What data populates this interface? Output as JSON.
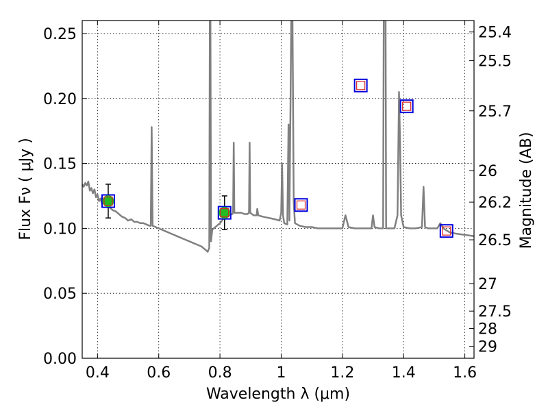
{
  "chart_data": {
    "type": "line",
    "xlabel": "Wavelength  λ (μm)",
    "ylabel": "Flux  Fν  ( μJy )",
    "ylabel_right": "Magnitude (AB)",
    "xlim": [
      0.35,
      1.63
    ],
    "ylim": [
      0.0,
      0.26
    ],
    "x_ticks": [
      0.4,
      0.6,
      0.8,
      1.0,
      1.2,
      1.4,
      1.6
    ],
    "x_tick_labels": [
      "0.4",
      "0.6",
      "0.8",
      "1",
      "1.2",
      "1.4",
      "1.6"
    ],
    "y_ticks": [
      0.0,
      0.05,
      0.1,
      0.15,
      0.2,
      0.25
    ],
    "y_tick_labels": [
      "0.00",
      "0.05",
      "0.10",
      "0.15",
      "0.20",
      "0.25"
    ],
    "right_ticks": [
      {
        "label": "25.4",
        "flux": 0.2512
      },
      {
        "label": "25.5",
        "flux": 0.2291
      },
      {
        "label": "25.7",
        "flux": 0.1905
      },
      {
        "label": "26",
        "flux": 0.1445
      },
      {
        "label": "26.2",
        "flux": 0.1202
      },
      {
        "label": "26.5",
        "flux": 0.0912
      },
      {
        "label": "27",
        "flux": 0.0575
      },
      {
        "label": "27.5",
        "flux": 0.0363
      },
      {
        "label": "28",
        "flux": 0.0229
      },
      {
        "label": "29",
        "flux": 0.0091
      }
    ],
    "grid": true,
    "spectrum": {
      "color": "#808080",
      "points": [
        [
          0.35,
          0.134
        ],
        [
          0.355,
          0.132
        ],
        [
          0.36,
          0.135
        ],
        [
          0.365,
          0.133
        ],
        [
          0.37,
          0.136
        ],
        [
          0.375,
          0.129
        ],
        [
          0.38,
          0.131
        ],
        [
          0.385,
          0.127
        ],
        [
          0.39,
          0.13
        ],
        [
          0.395,
          0.124
        ],
        [
          0.4,
          0.126
        ],
        [
          0.405,
          0.121
        ],
        [
          0.41,
          0.123
        ],
        [
          0.415,
          0.119
        ],
        [
          0.42,
          0.121
        ],
        [
          0.43,
          0.118
        ],
        [
          0.44,
          0.116
        ],
        [
          0.45,
          0.114
        ],
        [
          0.46,
          0.113
        ],
        [
          0.47,
          0.111
        ],
        [
          0.48,
          0.109
        ],
        [
          0.49,
          0.108
        ],
        [
          0.5,
          0.106
        ],
        [
          0.51,
          0.107
        ],
        [
          0.52,
          0.105
        ],
        [
          0.53,
          0.105
        ],
        [
          0.54,
          0.104
        ],
        [
          0.55,
          0.104
        ],
        [
          0.56,
          0.103
        ],
        [
          0.57,
          0.102
        ],
        [
          0.574,
          0.102
        ],
        [
          0.577,
          0.178
        ],
        [
          0.58,
          0.102
        ],
        [
          0.59,
          0.101
        ],
        [
          0.6,
          0.1
        ],
        [
          0.62,
          0.098
        ],
        [
          0.64,
          0.096
        ],
        [
          0.66,
          0.094
        ],
        [
          0.68,
          0.092
        ],
        [
          0.7,
          0.09
        ],
        [
          0.72,
          0.088
        ],
        [
          0.74,
          0.086
        ],
        [
          0.755,
          0.083
        ],
        [
          0.76,
          0.082
        ],
        [
          0.765,
          0.085
        ],
        [
          0.767,
          0.26
        ],
        [
          0.769,
          0.26
        ],
        [
          0.771,
          0.09
        ],
        [
          0.775,
          0.099
        ],
        [
          0.79,
          0.102
        ],
        [
          0.8,
          0.104
        ],
        [
          0.81,
          0.107
        ],
        [
          0.82,
          0.108
        ],
        [
          0.83,
          0.11
        ],
        [
          0.84,
          0.111
        ],
        [
          0.843,
          0.112
        ],
        [
          0.845,
          0.166
        ],
        [
          0.847,
          0.112
        ],
        [
          0.86,
          0.112
        ],
        [
          0.87,
          0.112
        ],
        [
          0.88,
          0.111
        ],
        [
          0.89,
          0.111
        ],
        [
          0.895,
          0.112
        ],
        [
          0.897,
          0.166
        ],
        [
          0.899,
          0.112
        ],
        [
          0.91,
          0.11
        ],
        [
          0.92,
          0.11
        ],
        [
          0.922,
          0.115
        ],
        [
          0.925,
          0.11
        ],
        [
          0.94,
          0.109
        ],
        [
          0.96,
          0.108
        ],
        [
          0.98,
          0.107
        ],
        [
          0.995,
          0.106
        ],
        [
          1.0,
          0.112
        ],
        [
          1.003,
          0.15
        ],
        [
          1.006,
          0.11
        ],
        [
          1.01,
          0.104
        ],
        [
          1.02,
          0.103
        ],
        [
          1.024,
          0.18
        ],
        [
          1.027,
          0.106
        ],
        [
          1.033,
          0.26
        ],
        [
          1.037,
          0.26
        ],
        [
          1.041,
          0.12
        ],
        [
          1.045,
          0.104
        ],
        [
          1.06,
          0.102
        ],
        [
          1.08,
          0.101
        ],
        [
          1.1,
          0.101
        ],
        [
          1.12,
          0.1
        ],
        [
          1.14,
          0.1
        ],
        [
          1.16,
          0.1
        ],
        [
          1.18,
          0.1
        ],
        [
          1.2,
          0.1
        ],
        [
          1.21,
          0.11
        ],
        [
          1.22,
          0.101
        ],
        [
          1.24,
          0.1
        ],
        [
          1.26,
          0.1
        ],
        [
          1.28,
          0.1
        ],
        [
          1.295,
          0.1
        ],
        [
          1.3,
          0.11
        ],
        [
          1.305,
          0.101
        ],
        [
          1.32,
          0.1
        ],
        [
          1.333,
          0.1
        ],
        [
          1.335,
          0.26
        ],
        [
          1.341,
          0.26
        ],
        [
          1.343,
          0.1
        ],
        [
          1.35,
          0.1
        ],
        [
          1.37,
          0.1
        ],
        [
          1.38,
          0.11
        ],
        [
          1.385,
          0.205
        ],
        [
          1.388,
          0.17
        ],
        [
          1.392,
          0.11
        ],
        [
          1.4,
          0.101
        ],
        [
          1.42,
          0.1
        ],
        [
          1.44,
          0.1
        ],
        [
          1.46,
          0.101
        ],
        [
          1.465,
          0.132
        ],
        [
          1.47,
          0.101
        ],
        [
          1.48,
          0.1
        ],
        [
          1.5,
          0.1
        ],
        [
          1.51,
          0.1
        ],
        [
          1.52,
          0.104
        ],
        [
          1.53,
          0.1
        ],
        [
          1.55,
          0.097
        ],
        [
          1.57,
          0.096
        ],
        [
          1.6,
          0.095
        ],
        [
          1.63,
          0.094
        ]
      ]
    },
    "observed_points": {
      "color": "#22bb22",
      "values": [
        {
          "x": 0.435,
          "y": 0.121,
          "yerr": 0.013
        },
        {
          "x": 0.815,
          "y": 0.112,
          "yerr": 0.013
        }
      ]
    },
    "model_squares": {
      "outer_color": "#0000dd",
      "inner_color": "#dd2222",
      "values": [
        {
          "x": 0.435,
          "y": 0.121
        },
        {
          "x": 0.815,
          "y": 0.112
        },
        {
          "x": 1.065,
          "y": 0.118
        },
        {
          "x": 1.26,
          "y": 0.21
        },
        {
          "x": 1.41,
          "y": 0.194
        },
        {
          "x": 1.54,
          "y": 0.098
        }
      ]
    }
  }
}
